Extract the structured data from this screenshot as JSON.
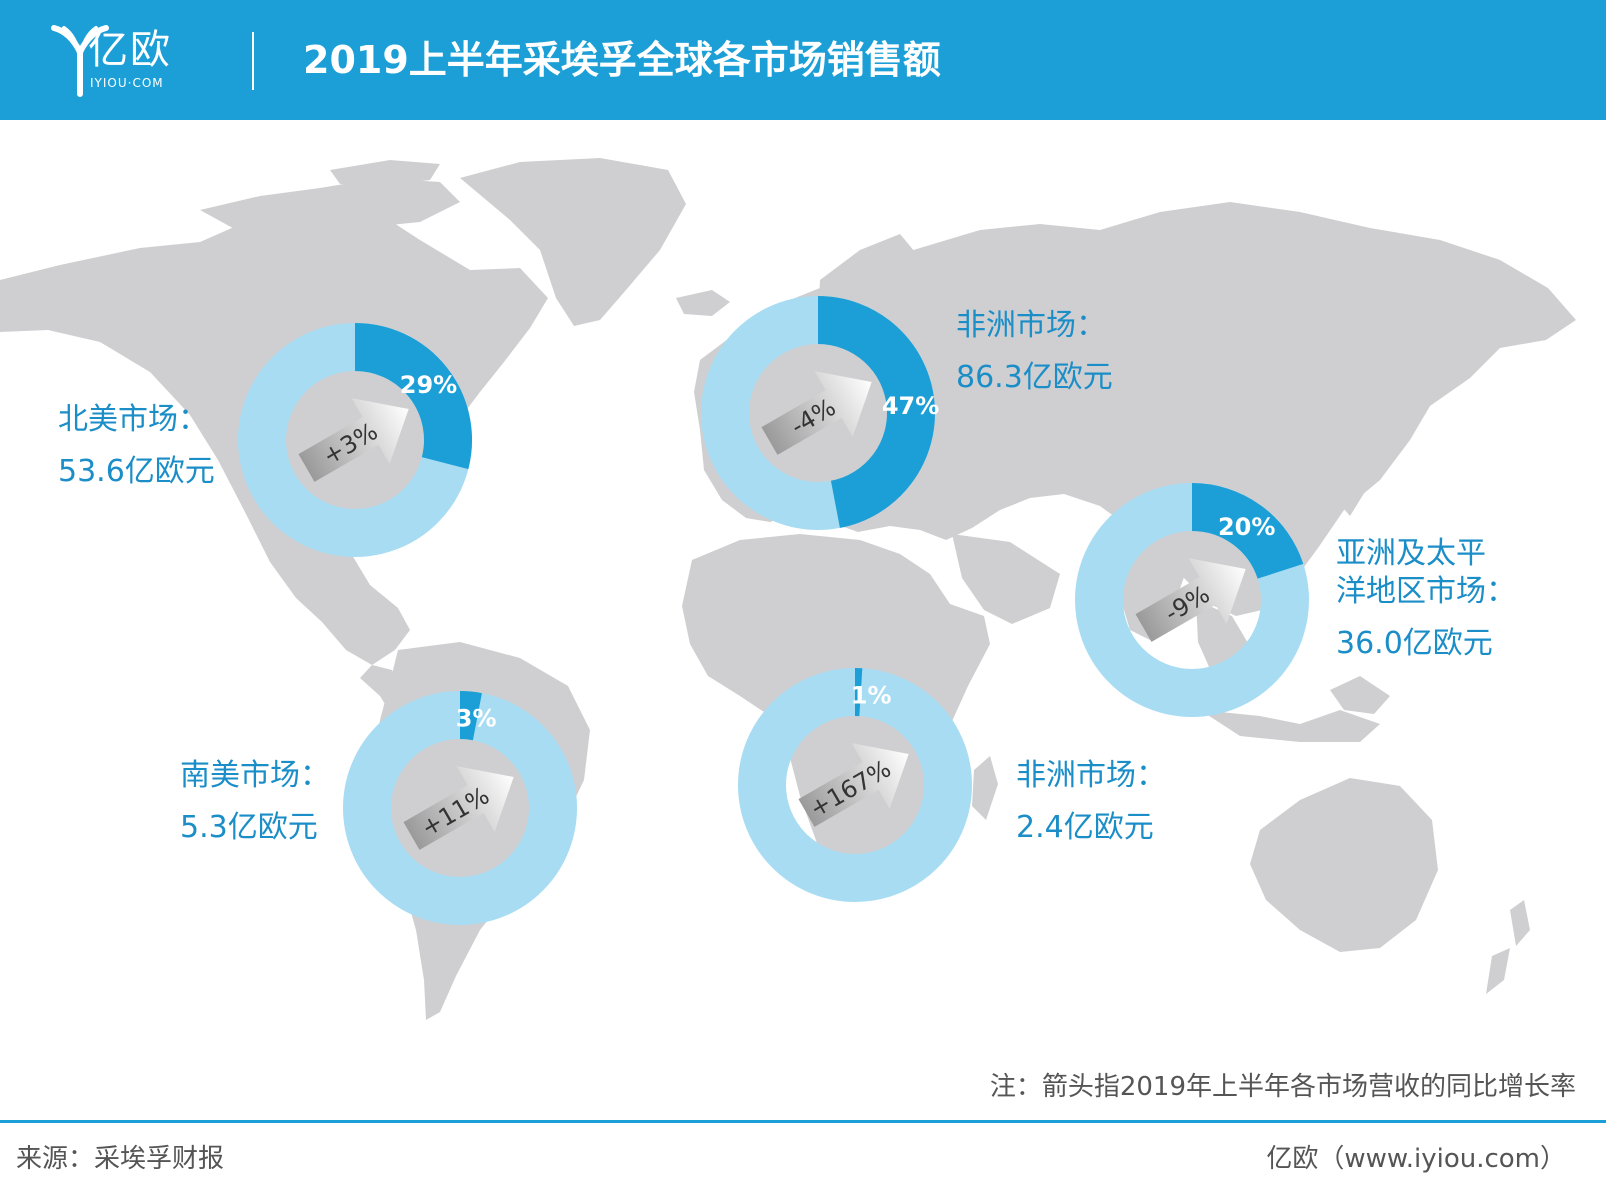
{
  "header": {
    "logo_text": "亿欧",
    "logo_sub": "IYIOU·COM",
    "title": "2019上半年采埃孚全球各市场销售额"
  },
  "colors": {
    "header_bg": "#1b9fd6",
    "share_dark": "#1b9fd6",
    "share_light": "#a8dcf3",
    "map_land": "#cfcfd1",
    "label_text": "#1b8ec8"
  },
  "chart_data": {
    "type": "pie",
    "variant": "donut",
    "series": [
      {
        "name": "北美市场：",
        "sales": "53.6亿欧元",
        "share": 29,
        "share_label": "29%",
        "growth": 3,
        "growth_label": "+3%"
      },
      {
        "name": "非洲市场：",
        "sales": "86.3亿欧元",
        "share": 47,
        "share_label": "47%",
        "growth": -4,
        "growth_label": "-4%"
      },
      {
        "name": "亚洲及太平洋地区市场：",
        "name_line1": "亚洲及太平",
        "name_line2": "洋地区市场：",
        "sales": "36.0亿欧元",
        "share": 20,
        "share_label": "20%",
        "growth": -9,
        "growth_label": "-9%"
      },
      {
        "name": "南美市场：",
        "sales": "5.3亿欧元",
        "share": 3,
        "share_label": "3%",
        "growth": 11,
        "growth_label": "+11%"
      },
      {
        "name": "非洲市场：",
        "sales": "2.4亿欧元",
        "share": 1,
        "share_label": "1%",
        "growth": 167,
        "growth_label": "+167%"
      }
    ]
  },
  "footer": {
    "note": "注：箭头指2019年上半年各市场营收的同比增长率",
    "source": "来源：采埃孚财报",
    "credit": "亿欧（www.iyiou.com）"
  }
}
